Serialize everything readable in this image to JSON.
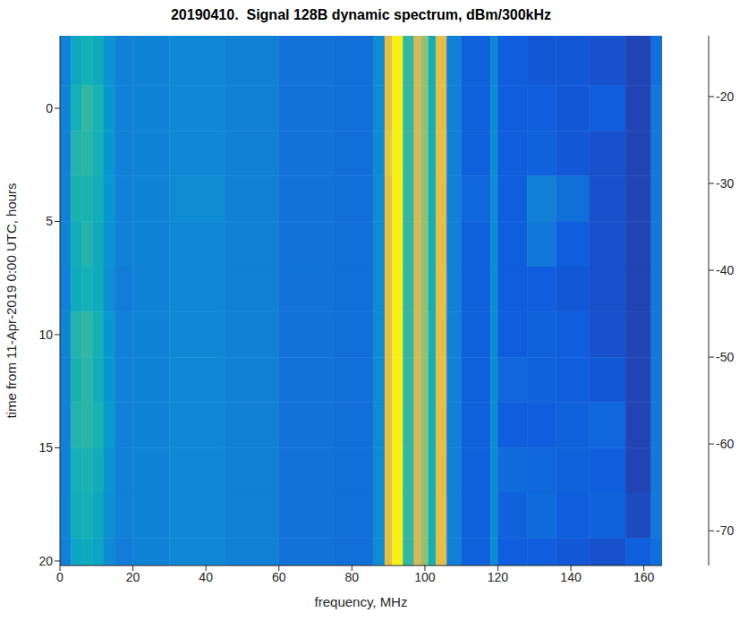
{
  "chart_data": {
    "type": "heatmap",
    "title": "20190410.  Signal 128B dynamic spectrum, dBm/300kHz",
    "x_label": "frequency, MHz",
    "y_label": "time from 11-Apr-2019 0:00 UTC, hours",
    "xlim": [
      0,
      165
    ],
    "xticks": [
      0,
      20,
      40,
      60,
      80,
      100,
      120,
      140,
      160
    ],
    "ylim": [
      -3.2,
      20.2
    ],
    "yticks": [
      0,
      5,
      10,
      15,
      20
    ],
    "x_edges": [
      0,
      3,
      6,
      9,
      12,
      15,
      20,
      30,
      45,
      60,
      75,
      86,
      89,
      91,
      94,
      97,
      99,
      101,
      103,
      106,
      110,
      118,
      120,
      128,
      136,
      145,
      155,
      162,
      165
    ],
    "y_edges": [
      -3.2,
      -1,
      1,
      3,
      5,
      7,
      9,
      11,
      13,
      15,
      17,
      19,
      20.2
    ],
    "cells": [
      [
        -58,
        -47,
        -44,
        -46,
        -53,
        -58,
        -57,
        -56,
        -58,
        -61,
        -62,
        -55,
        -20,
        -14,
        -40,
        -22,
        -30,
        -45,
        -20,
        -58,
        -65,
        -56,
        -66,
        -67,
        -67,
        -68,
        -70,
        -62
      ],
      [
        -57,
        -44,
        -40,
        -43,
        -52,
        -58,
        -57,
        -56,
        -58,
        -61,
        -62,
        -55,
        -20,
        -14,
        -40,
        -22,
        -30,
        -45,
        -20,
        -58,
        -65,
        -55,
        -66,
        -66,
        -67,
        -66,
        -70,
        -60
      ],
      [
        -58,
        -42,
        -41,
        -44,
        -52,
        -58,
        -57,
        -56,
        -58,
        -61,
        -62,
        -55,
        -19,
        -14,
        -40,
        -22,
        -30,
        -45,
        -20,
        -58,
        -65,
        -55,
        -66,
        -65,
        -67,
        -68,
        -70,
        -60
      ],
      [
        -58,
        -43,
        -43,
        -45,
        -52,
        -58,
        -57,
        -55,
        -58,
        -61,
        -62,
        -55,
        -20,
        -14,
        -40,
        -22,
        -30,
        -45,
        -20,
        -58,
        -64,
        -55,
        -66,
        -58,
        -62,
        -68,
        -70,
        -60
      ],
      [
        -57,
        -45,
        -42,
        -46,
        -53,
        -58,
        -57,
        -56,
        -58,
        -61,
        -62,
        -55,
        -20,
        -14,
        -40,
        -22,
        -30,
        -45,
        -20,
        -58,
        -65,
        -55,
        -66,
        -60,
        -66,
        -68,
        -70,
        -60
      ],
      [
        -58,
        -46,
        -44,
        -46,
        -54,
        -59,
        -57,
        -56,
        -58,
        -61,
        -62,
        -55,
        -20,
        -14,
        -40,
        -22,
        -30,
        -45,
        -20,
        -58,
        -65,
        -55,
        -66,
        -66,
        -67,
        -68,
        -70,
        -60
      ],
      [
        -57,
        -42,
        -40,
        -44,
        -52,
        -58,
        -57,
        -56,
        -58,
        -61,
        -62,
        -55,
        -20,
        -14,
        -40,
        -22,
        -30,
        -44,
        -20,
        -58,
        -65,
        -55,
        -66,
        -65,
        -66,
        -68,
        -70,
        -60
      ],
      [
        -58,
        -43,
        -41,
        -45,
        -52,
        -58,
        -57,
        -56,
        -58,
        -61,
        -62,
        -55,
        -20,
        -14,
        -40,
        -22,
        -30,
        -45,
        -20,
        -58,
        -65,
        -55,
        -64,
        -65,
        -66,
        -67,
        -70,
        -60
      ],
      [
        -58,
        -42,
        -41,
        -43,
        -51,
        -58,
        -57,
        -56,
        -58,
        -61,
        -62,
        -55,
        -20,
        -14,
        -40,
        -22,
        -30,
        -45,
        -20,
        -58,
        -65,
        -55,
        -66,
        -66,
        -65,
        -64,
        -70,
        -60
      ],
      [
        -58,
        -44,
        -43,
        -45,
        -53,
        -58,
        -57,
        -56,
        -58,
        -61,
        -62,
        -55,
        -20,
        -14,
        -40,
        -22,
        -30,
        -45,
        -20,
        -58,
        -65,
        -55,
        -63,
        -64,
        -65,
        -66,
        -70,
        -60
      ],
      [
        -57,
        -45,
        -44,
        -47,
        -54,
        -58,
        -57,
        -56,
        -58,
        -61,
        -62,
        -55,
        -20,
        -14,
        -40,
        -22,
        -30,
        -45,
        -20,
        -58,
        -65,
        -55,
        -65,
        -63,
        -66,
        -65,
        -69,
        -60
      ],
      [
        -58,
        -48,
        -46,
        -48,
        -55,
        -59,
        -57,
        -56,
        -58,
        -61,
        -62,
        -55,
        -20,
        -14,
        -40,
        -22,
        -30,
        -45,
        -20,
        -58,
        -65,
        -55,
        -66,
        -66,
        -67,
        -68,
        -66,
        -62
      ]
    ],
    "clim": [
      -74,
      -13
    ],
    "cticks": [
      -70,
      -60,
      -50,
      -40,
      -30,
      -20
    ]
  }
}
